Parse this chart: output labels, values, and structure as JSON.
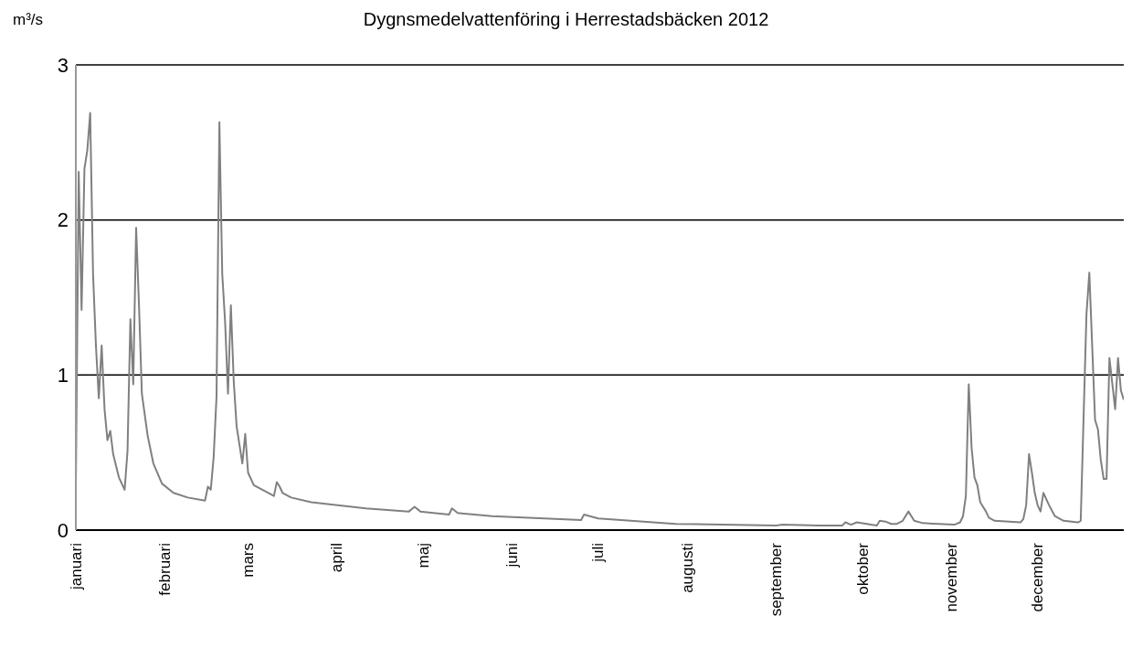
{
  "chart_data": {
    "type": "line",
    "title": "Dygnsmedelvattenföring i Herrestadsbäcken 2012",
    "ylabel": "m³/s",
    "x": [
      "2012-01-01",
      "2012-01-02",
      "2012-01-03",
      "2012-01-04",
      "2012-01-05",
      "2012-01-06",
      "2012-01-07",
      "2012-01-08",
      "2012-01-09",
      "2012-01-10",
      "2012-01-11",
      "2012-01-12",
      "2012-01-13",
      "2012-01-14",
      "2012-01-16",
      "2012-01-18",
      "2012-01-19",
      "2012-01-20",
      "2012-01-21",
      "2012-01-22",
      "2012-01-23",
      "2012-01-24",
      "2012-01-26",
      "2012-01-28",
      "2012-01-31",
      "2012-02-04",
      "2012-02-09",
      "2012-02-15",
      "2012-02-16",
      "2012-02-17",
      "2012-02-18",
      "2012-02-19",
      "2012-02-20",
      "2012-02-21",
      "2012-02-22",
      "2012-02-23",
      "2012-02-24",
      "2012-02-25",
      "2012-02-26",
      "2012-02-28",
      "2012-02-29",
      "2012-03-01",
      "2012-03-03",
      "2012-03-06",
      "2012-03-10",
      "2012-03-11",
      "2012-03-12",
      "2012-03-13",
      "2012-03-16",
      "2012-03-23",
      "2012-04-11",
      "2012-04-26",
      "2012-04-28",
      "2012-04-30",
      "2012-05-10",
      "2012-05-11",
      "2012-05-13",
      "2012-05-25",
      "2012-06-25",
      "2012-06-26",
      "2012-06-28",
      "2012-07-01",
      "2012-07-28",
      "2012-09-01",
      "2012-09-03",
      "2012-09-16",
      "2012-09-24",
      "2012-09-25",
      "2012-09-27",
      "2012-09-29",
      "2012-10-06",
      "2012-10-07",
      "2012-10-09",
      "2012-10-11",
      "2012-10-13",
      "2012-10-15",
      "2012-10-17",
      "2012-10-19",
      "2012-10-22",
      "2012-11-02",
      "2012-11-04",
      "2012-11-05",
      "2012-11-06",
      "2012-11-07",
      "2012-11-08",
      "2012-11-09",
      "2012-11-10",
      "2012-11-11",
      "2012-11-13",
      "2012-11-14",
      "2012-11-16",
      "2012-11-25",
      "2012-11-26",
      "2012-11-27",
      "2012-11-28",
      "2012-11-29",
      "2012-11-30",
      "2012-12-01",
      "2012-12-02",
      "2012-12-03",
      "2012-12-05",
      "2012-12-07",
      "2012-12-10",
      "2012-12-15",
      "2012-12-16",
      "2012-12-18",
      "2012-12-19",
      "2012-12-21",
      "2012-12-22",
      "2012-12-23",
      "2012-12-24",
      "2012-12-25",
      "2012-12-26",
      "2012-12-28",
      "2012-12-29",
      "2012-12-30",
      "2012-12-31"
    ],
    "series": [
      {
        "color": "#808080",
        "values": [
          0.27,
          2.31,
          1.42,
          2.33,
          2.45,
          2.69,
          1.65,
          1.19,
          0.85,
          1.19,
          0.78,
          0.58,
          0.64,
          0.49,
          0.34,
          0.26,
          0.51,
          1.36,
          0.94,
          1.95,
          1.45,
          0.88,
          0.61,
          0.43,
          0.3,
          0.24,
          0.21,
          0.19,
          0.28,
          0.26,
          0.47,
          0.86,
          2.63,
          1.65,
          1.34,
          0.88,
          1.45,
          0.96,
          0.67,
          0.43,
          0.62,
          0.37,
          0.29,
          0.26,
          0.22,
          0.31,
          0.28,
          0.24,
          0.21,
          0.18,
          0.14,
          0.12,
          0.15,
          0.12,
          0.1,
          0.14,
          0.11,
          0.09,
          0.065,
          0.1,
          0.09,
          0.075,
          0.04,
          0.03,
          0.035,
          0.03,
          0.03,
          0.05,
          0.035,
          0.05,
          0.03,
          0.06,
          0.055,
          0.04,
          0.04,
          0.06,
          0.12,
          0.06,
          0.045,
          0.035,
          0.05,
          0.09,
          0.22,
          0.94,
          0.53,
          0.34,
          0.29,
          0.18,
          0.12,
          0.08,
          0.06,
          0.05,
          0.07,
          0.16,
          0.49,
          0.37,
          0.24,
          0.16,
          0.12,
          0.24,
          0.16,
          0.09,
          0.06,
          0.05,
          0.06,
          1.39,
          1.66,
          0.71,
          0.65,
          0.45,
          0.33,
          0.33,
          1.11,
          0.78,
          1.11,
          0.9,
          0.84
        ]
      }
    ],
    "xlim": [
      "2012-01-01",
      "2012-12-31"
    ],
    "xticks": [
      {
        "value": "2012-01-01",
        "label": "januari"
      },
      {
        "value": "2012-02-01",
        "label": "februari"
      },
      {
        "value": "2012-03-01",
        "label": "mars"
      },
      {
        "value": "2012-04-01",
        "label": "april"
      },
      {
        "value": "2012-05-01",
        "label": "maj"
      },
      {
        "value": "2012-06-01",
        "label": "juni"
      },
      {
        "value": "2012-07-01",
        "label": "juli"
      },
      {
        "value": "2012-08-01",
        "label": "augusti"
      },
      {
        "value": "2012-09-01",
        "label": "september"
      },
      {
        "value": "2012-10-01",
        "label": "oktober"
      },
      {
        "value": "2012-11-01",
        "label": "november"
      },
      {
        "value": "2012-12-01",
        "label": "december"
      }
    ],
    "ylim": [
      0,
      3
    ],
    "yticks": [
      0,
      1,
      2,
      3
    ],
    "grid": "y",
    "legend": false,
    "marker": "none",
    "line_style": "solid"
  }
}
